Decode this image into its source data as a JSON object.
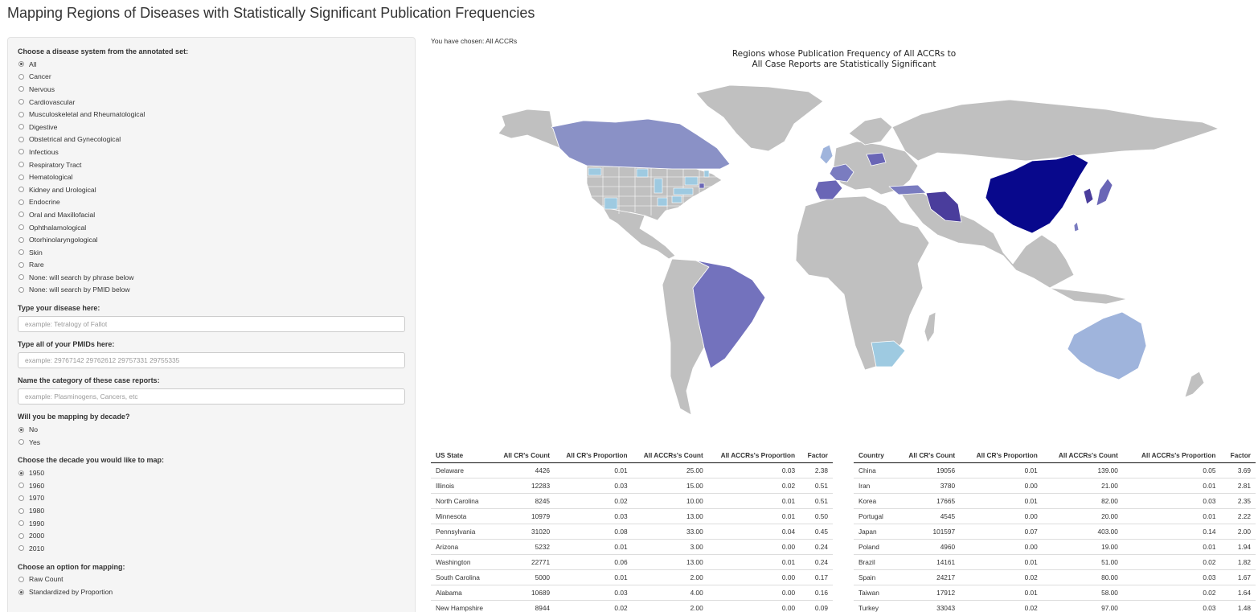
{
  "page": {
    "title": "Mapping Regions of Diseases with Statistically Significant Publication Frequencies"
  },
  "sidebar": {
    "disease_label": "Choose a disease system from the annotated set:",
    "disease_options": [
      "All",
      "Cancer",
      "Nervous",
      "Cardiovascular",
      "Musculoskeletal and Rheumatological",
      "Digestive",
      "Obstetrical and Gynecological",
      "Infectious",
      "Respiratory Tract",
      "Hematological",
      "Kidney and Urological",
      "Endocrine",
      "Oral and Maxillofacial",
      "Ophthalamological",
      "Otorhinolaryngological",
      "Skin",
      "Rare",
      "None: will search by phrase below",
      "None: will search by PMID below"
    ],
    "disease_selected": "All",
    "disease_input_label": "Type your disease here:",
    "disease_input_placeholder": "example: Tetralogy of Fallot",
    "disease_input_value": "",
    "pmid_input_label": "Type all of your PMIDs here:",
    "pmid_input_placeholder": "example: 29767142 29762612 29757331 29755335",
    "pmid_input_value": "",
    "category_input_label": "Name the category of these case reports:",
    "category_input_placeholder": "example: Plasminogens, Cancers, etc",
    "category_input_value": "",
    "decade_q_label": "Will you be mapping by decade?",
    "decade_q_options": [
      "No",
      "Yes"
    ],
    "decade_q_selected": "No",
    "decade_label": "Choose the decade you would like to map:",
    "decade_options": [
      "1950",
      "1960",
      "1970",
      "1980",
      "1990",
      "2000",
      "2010"
    ],
    "decade_selected": "1950",
    "mapping_label": "Choose an option for mapping:",
    "mapping_options": [
      "Raw Count",
      "Standardized by Proportion"
    ],
    "mapping_selected": "Standardized by Proportion"
  },
  "main": {
    "chosen_text": "You have chosen: All ACCRs",
    "map_title_line1": "Regions whose Publication Frequency of All ACCRs to",
    "map_title_line2": "All Case Reports are Statistically Significant"
  },
  "colors": {
    "no_data": "#c0c0c0",
    "factor_scale_low": "#9ecae1",
    "factor_scale_high": "#08088c"
  },
  "state_table": {
    "headers": [
      "US State",
      "All CR's Count",
      "All CR's Proportion",
      "All ACCRs's Count",
      "All ACCRs's Proportion",
      "Factor"
    ],
    "rows": [
      [
        "Delaware",
        "4426",
        "0.01",
        "25.00",
        "0.03",
        "2.38"
      ],
      [
        "Illinois",
        "12283",
        "0.03",
        "15.00",
        "0.02",
        "0.51"
      ],
      [
        "North Carolina",
        "8245",
        "0.02",
        "10.00",
        "0.01",
        "0.51"
      ],
      [
        "Minnesota",
        "10979",
        "0.03",
        "13.00",
        "0.01",
        "0.50"
      ],
      [
        "Pennsylvania",
        "31020",
        "0.08",
        "33.00",
        "0.04",
        "0.45"
      ],
      [
        "Arizona",
        "5232",
        "0.01",
        "3.00",
        "0.00",
        "0.24"
      ],
      [
        "Washington",
        "22771",
        "0.06",
        "13.00",
        "0.01",
        "0.24"
      ],
      [
        "South Carolina",
        "5000",
        "0.01",
        "2.00",
        "0.00",
        "0.17"
      ],
      [
        "Alabama",
        "10689",
        "0.03",
        "4.00",
        "0.00",
        "0.16"
      ],
      [
        "New Hampshire",
        "8944",
        "0.02",
        "2.00",
        "0.00",
        "0.09"
      ]
    ]
  },
  "country_table": {
    "headers": [
      "Country",
      "All CR's Count",
      "All CR's Proportion",
      "All ACCRs's Count",
      "All ACCRs's Proportion",
      "Factor"
    ],
    "rows": [
      [
        "China",
        "19056",
        "0.01",
        "139.00",
        "0.05",
        "3.69"
      ],
      [
        "Iran",
        "3780",
        "0.00",
        "21.00",
        "0.01",
        "2.81"
      ],
      [
        "Korea",
        "17665",
        "0.01",
        "82.00",
        "0.03",
        "2.35"
      ],
      [
        "Portugal",
        "4545",
        "0.00",
        "20.00",
        "0.01",
        "2.22"
      ],
      [
        "Japan",
        "101597",
        "0.07",
        "403.00",
        "0.14",
        "2.00"
      ],
      [
        "Poland",
        "4960",
        "0.00",
        "19.00",
        "0.01",
        "1.94"
      ],
      [
        "Brazil",
        "14161",
        "0.01",
        "51.00",
        "0.02",
        "1.82"
      ],
      [
        "Spain",
        "24217",
        "0.02",
        "80.00",
        "0.03",
        "1.67"
      ],
      [
        "Taiwan",
        "17912",
        "0.01",
        "58.00",
        "0.02",
        "1.64"
      ],
      [
        "Turkey",
        "33043",
        "0.02",
        "97.00",
        "0.03",
        "1.48"
      ]
    ]
  }
}
